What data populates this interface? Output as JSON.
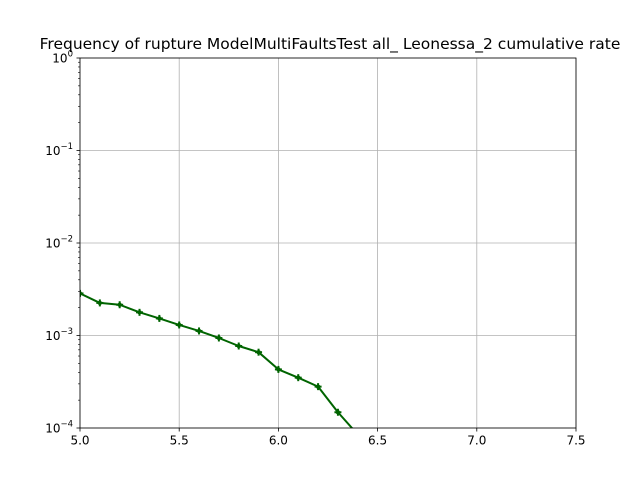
{
  "chart_data": {
    "type": "line",
    "title": "Frequency of rupture ModelMultiFaultsTest all_ Leonessa_2 cumulative rate",
    "xlabel": "",
    "ylabel": "",
    "xlim": [
      5.0,
      7.5
    ],
    "ylim": [
      0.0001,
      1
    ],
    "yscale": "log",
    "grid": true,
    "x_ticks": [
      5.0,
      5.5,
      6.0,
      6.5,
      7.0,
      7.5
    ],
    "x_tick_labels": [
      "5.0",
      "5.5",
      "6.0",
      "6.5",
      "7.0",
      "7.5"
    ],
    "y_ticks": [
      {
        "value": 0.0001,
        "base": "10",
        "exp": "−4"
      },
      {
        "value": 0.001,
        "base": "10",
        "exp": "−3"
      },
      {
        "value": 0.01,
        "base": "10",
        "exp": "−2"
      },
      {
        "value": 0.1,
        "base": "10",
        "exp": "−1"
      },
      {
        "value": 1,
        "base": "10",
        "exp": "0"
      }
    ],
    "series": [
      {
        "color": "#006400",
        "marker": "+",
        "x": [
          5.0,
          5.1,
          5.2,
          5.3,
          5.4,
          5.5,
          5.6,
          5.7,
          5.8,
          5.9,
          6.0,
          6.1,
          6.2,
          6.3,
          6.4
        ],
        "y": [
          0.00285,
          0.00225,
          0.00215,
          0.00178,
          0.00153,
          0.0013,
          0.00112,
          0.00094,
          0.00077,
          0.00066,
          0.00043,
          0.00035,
          0.00028,
          0.000148,
          8.5e-05
        ]
      }
    ]
  }
}
